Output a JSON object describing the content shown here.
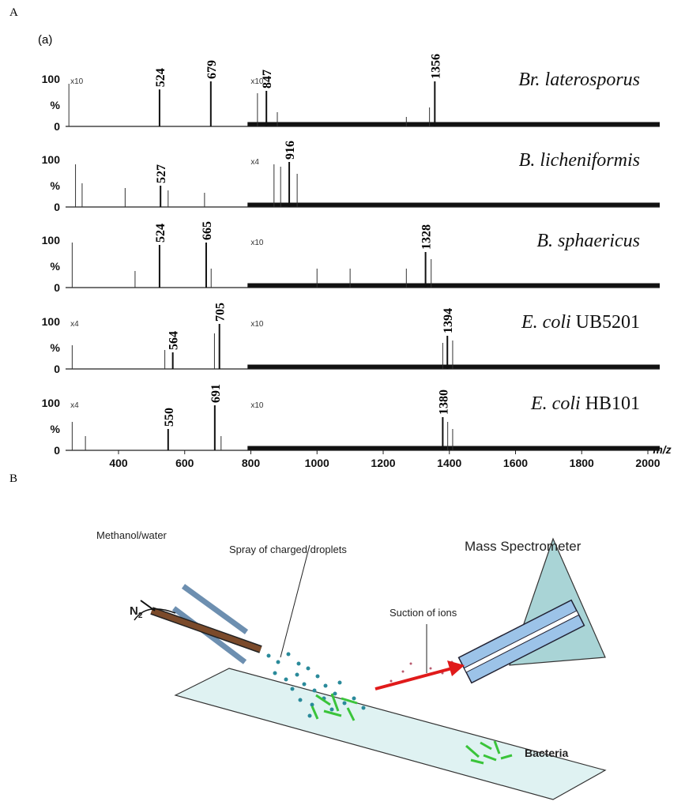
{
  "panel_a": {
    "label": "A",
    "sublabel": "(a)",
    "x_label": "m/z",
    "xlim": [
      240,
      2000
    ],
    "xticks": [
      400,
      600,
      800,
      1000,
      1200,
      1400,
      1600,
      1800,
      2000
    ],
    "ylim": [
      0,
      100
    ],
    "yticks": [
      0,
      100
    ],
    "y_mid_label": "%",
    "spectra": [
      {
        "name_italic": "Br. laterosporus",
        "mag": [
          {
            "label": "x10",
            "from": 245
          },
          {
            "label": "x10",
            "from": 790
          }
        ],
        "peaks": [
          {
            "mz": 524,
            "height": 78
          },
          {
            "mz": 679,
            "height": 95
          },
          {
            "mz": 847,
            "height": 75
          },
          {
            "mz": 1356,
            "height": 95
          }
        ],
        "minor": [
          {
            "mz": 250,
            "height": 90
          },
          {
            "mz": 820,
            "height": 70
          },
          {
            "mz": 880,
            "height": 30
          },
          {
            "mz": 1270,
            "height": 20
          },
          {
            "mz": 1340,
            "height": 40
          }
        ]
      },
      {
        "name_italic": "B. licheniformis",
        "mag": [
          {
            "label": "x4",
            "from": 790
          }
        ],
        "peaks": [
          {
            "mz": 527,
            "height": 45
          },
          {
            "mz": 916,
            "height": 95
          }
        ],
        "minor": [
          {
            "mz": 270,
            "height": 90
          },
          {
            "mz": 290,
            "height": 50
          },
          {
            "mz": 420,
            "height": 40
          },
          {
            "mz": 550,
            "height": 35
          },
          {
            "mz": 660,
            "height": 30
          },
          {
            "mz": 870,
            "height": 90
          },
          {
            "mz": 890,
            "height": 85
          },
          {
            "mz": 940,
            "height": 70
          }
        ]
      },
      {
        "name_italic": "B. sphaericus",
        "mag": [
          {
            "label": "x10",
            "from": 790
          }
        ],
        "peaks": [
          {
            "mz": 524,
            "height": 90
          },
          {
            "mz": 665,
            "height": 95
          },
          {
            "mz": 1328,
            "height": 75
          }
        ],
        "minor": [
          {
            "mz": 260,
            "height": 95
          },
          {
            "mz": 450,
            "height": 35
          },
          {
            "mz": 680,
            "height": 40
          },
          {
            "mz": 1000,
            "height": 40
          },
          {
            "mz": 1100,
            "height": 40
          },
          {
            "mz": 1270,
            "height": 40
          },
          {
            "mz": 1345,
            "height": 60
          }
        ]
      },
      {
        "name_italic": "E. coli",
        "name_rest": "UB5201",
        "mag": [
          {
            "label": "x4",
            "from": 245
          },
          {
            "label": "x10",
            "from": 790
          }
        ],
        "peaks": [
          {
            "mz": 564,
            "height": 35
          },
          {
            "mz": 705,
            "height": 95
          },
          {
            "mz": 1394,
            "height": 70
          }
        ],
        "minor": [
          {
            "mz": 260,
            "height": 50
          },
          {
            "mz": 540,
            "height": 40
          },
          {
            "mz": 690,
            "height": 75
          },
          {
            "mz": 1380,
            "height": 55
          },
          {
            "mz": 1410,
            "height": 60
          }
        ]
      },
      {
        "name_italic": "E. coli",
        "name_rest": "HB101",
        "mag": [
          {
            "label": "x4",
            "from": 245
          },
          {
            "label": "x10",
            "from": 790
          }
        ],
        "peaks": [
          {
            "mz": 550,
            "height": 45
          },
          {
            "mz": 691,
            "height": 95
          },
          {
            "mz": 1380,
            "height": 70
          }
        ],
        "minor": [
          {
            "mz": 260,
            "height": 60
          },
          {
            "mz": 300,
            "height": 30
          },
          {
            "mz": 710,
            "height": 30
          },
          {
            "mz": 1395,
            "height": 60
          },
          {
            "mz": 1410,
            "height": 45
          }
        ]
      }
    ]
  },
  "panel_b": {
    "label": "B",
    "solvent": "Methanol/water",
    "gas": "N",
    "gas_subscript": "2",
    "spray": "Spray of charged droplets",
    "suction": "Suction of ions",
    "instrument": "Mass Spectrometer",
    "sample": "Bacteria"
  }
}
